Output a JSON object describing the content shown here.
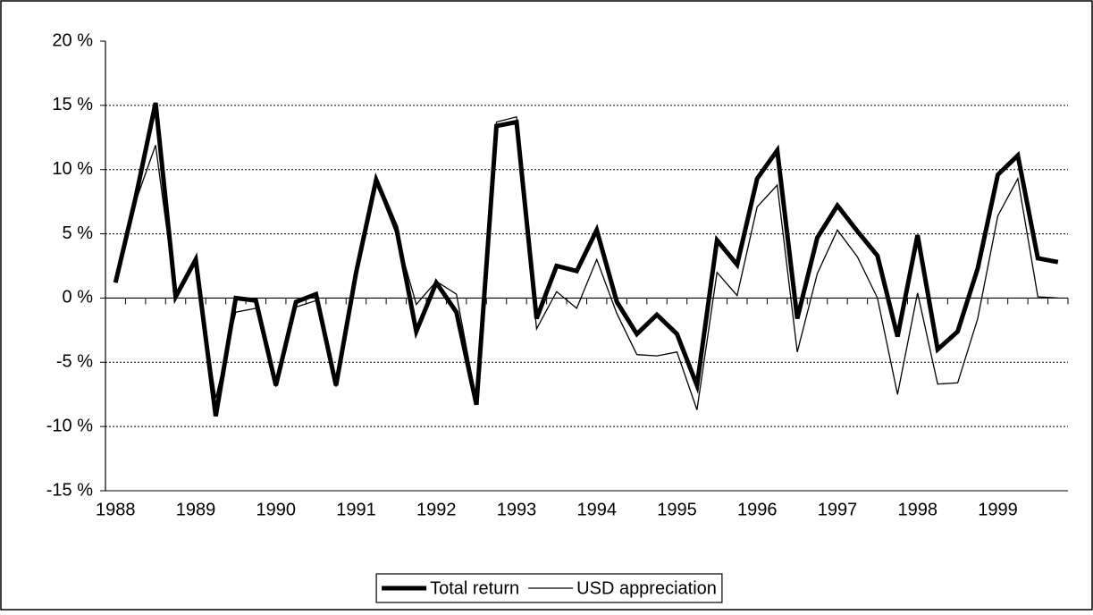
{
  "chart_data": {
    "type": "line",
    "categories": [
      "1988",
      null,
      null,
      null,
      "1989",
      null,
      null,
      null,
      "1990",
      null,
      null,
      null,
      "1991",
      null,
      null,
      null,
      "1992",
      null,
      null,
      null,
      "1993",
      null,
      null,
      null,
      "1994",
      null,
      null,
      null,
      "1995",
      null,
      null,
      null,
      "1996",
      null,
      null,
      null,
      "1997",
      null,
      null,
      null,
      "1998",
      null,
      null,
      null,
      "1999",
      null,
      null,
      null
    ],
    "series": [
      {
        "name": "Total return",
        "color": "#000000",
        "width": 5,
        "values": [
          1.2,
          7.8,
          15.2,
          0.1,
          3.0,
          -9.2,
          0.0,
          -0.2,
          -6.8,
          -0.3,
          0.3,
          -6.8,
          2.0,
          9.2,
          5.5,
          -2.6,
          1.2,
          -1.1,
          -8.3,
          13.4,
          13.7,
          -1.6,
          2.5,
          2.1,
          5.3,
          -0.3,
          -2.8,
          -1.3,
          -2.8,
          -6.8,
          4.5,
          2.6,
          9.3,
          11.5,
          -1.6,
          4.7,
          7.2,
          5.2,
          3.3,
          -3.0,
          4.9,
          -4.0,
          -2.6,
          2.3,
          9.6,
          11.1,
          3.1,
          2.8
        ]
      },
      {
        "name": "USD appreciation",
        "color": "#000000",
        "width": 1.3,
        "values": [
          1.2,
          7.5,
          11.9,
          0.2,
          2.8,
          -7.8,
          -1.1,
          -0.8,
          -6.9,
          -0.7,
          -0.2,
          -6.9,
          2.3,
          9.0,
          5.0,
          -0.5,
          1.3,
          0.3,
          -8.0,
          13.7,
          14.1,
          -2.4,
          0.5,
          -0.8,
          3.0,
          -1.2,
          -4.4,
          -4.5,
          -4.2,
          -8.7,
          2.0,
          0.2,
          7.1,
          8.8,
          -4.2,
          1.9,
          5.3,
          3.2,
          0.0,
          -7.5,
          0.4,
          -6.7,
          -6.6,
          -1.6,
          6.4,
          9.3,
          0.1,
          0.0
        ]
      }
    ],
    "ylim": [
      -15,
      20
    ],
    "yticks": [
      {
        "value": -15,
        "label": "-15 %"
      },
      {
        "value": -10,
        "label": "-10 %"
      },
      {
        "value": -5,
        "label": "-5 %"
      },
      {
        "value": 0,
        "label": "0 %"
      },
      {
        "value": 5,
        "label": "5 %"
      },
      {
        "value": 10,
        "label": "10 %"
      },
      {
        "value": 15,
        "label": "15 %"
      },
      {
        "value": 20,
        "label": "20 %"
      }
    ],
    "grid": true,
    "legend": "bottom"
  }
}
